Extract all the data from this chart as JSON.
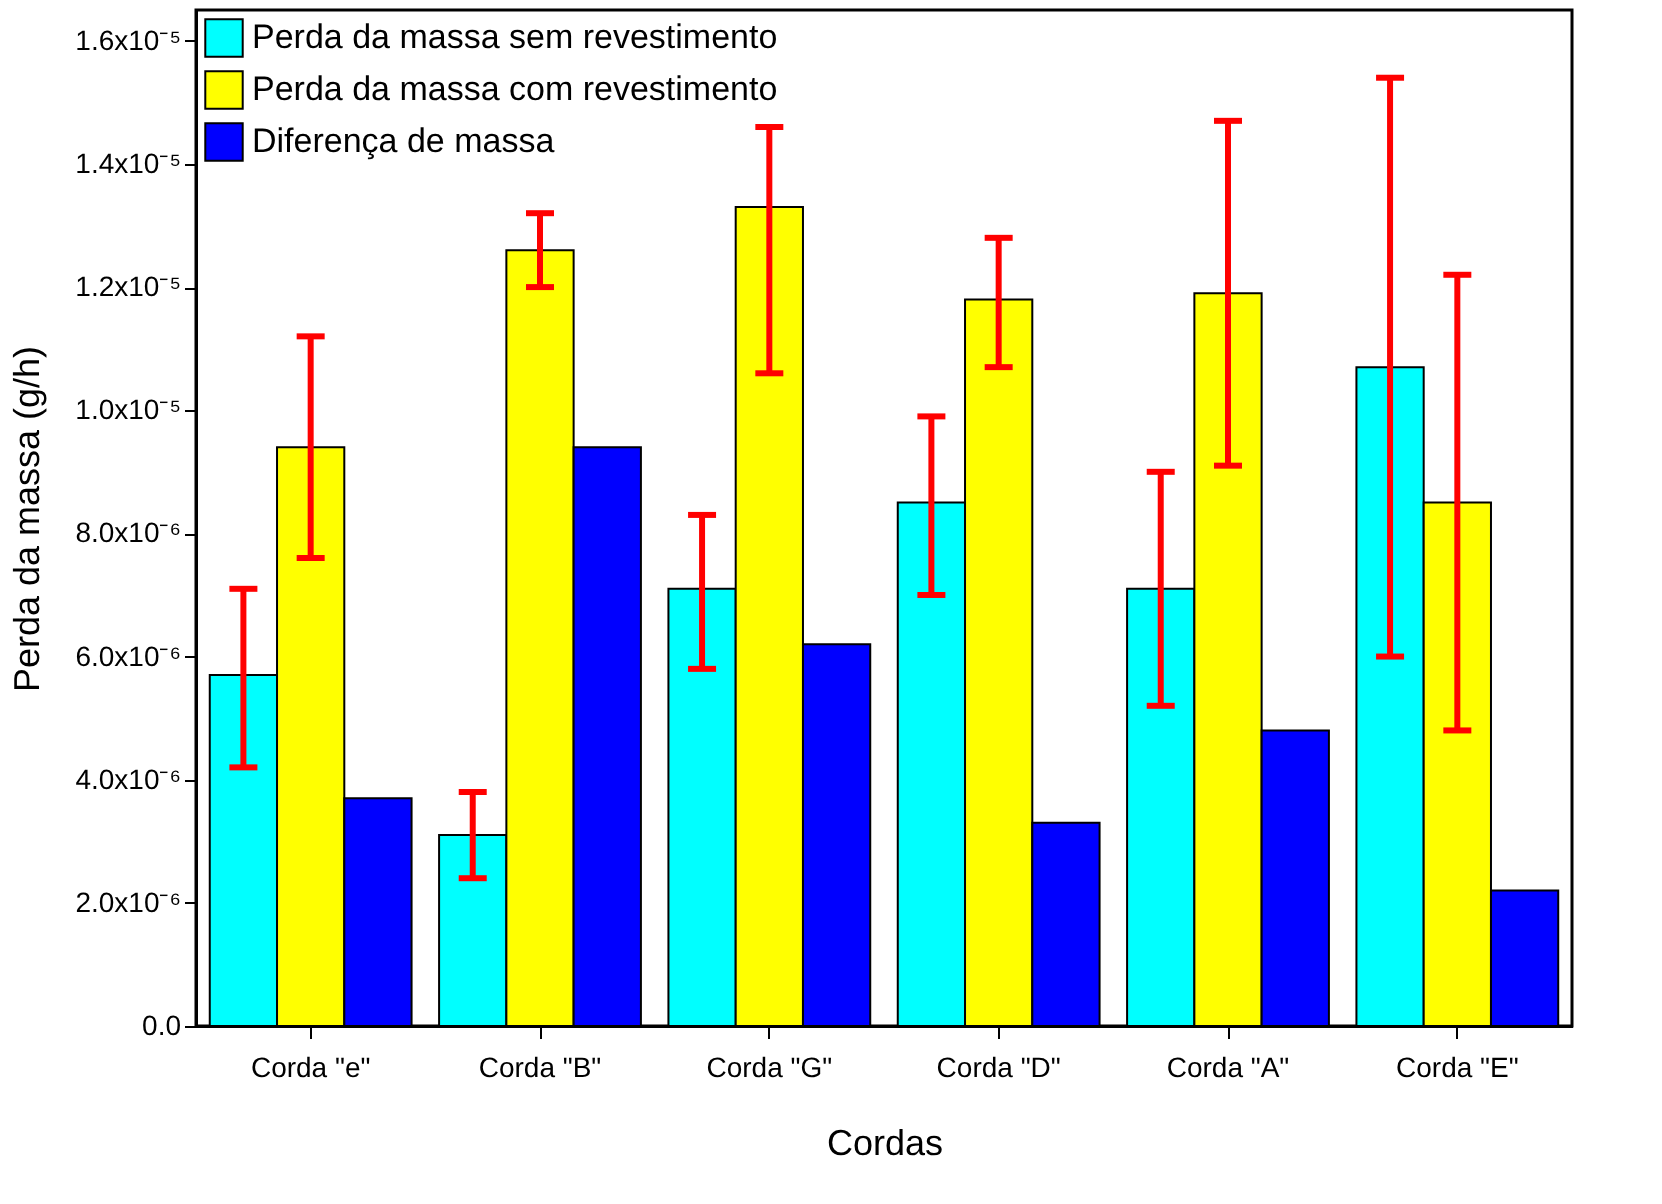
{
  "chart_data": {
    "type": "bar",
    "xlabel": "Cordas",
    "ylabel": "Perda da massa (g/h)",
    "categories": [
      "Corda \"e\"",
      "Corda \"B\"",
      "Corda \"G\"",
      "Corda \"D\"",
      "Corda \"A\"",
      "Corda \"E\""
    ],
    "series": [
      {
        "name": "Perda da massa sem revestimento",
        "color": "#00ffff",
        "values": [
          5.7e-06,
          3.1e-06,
          7.1e-06,
          8.5e-06,
          7.1e-06,
          1.07e-05
        ],
        "errors": [
          [
            4.2e-06,
            7.1e-06
          ],
          [
            2.4e-06,
            3.8e-06
          ],
          [
            5.8e-06,
            8.3e-06
          ],
          [
            7e-06,
            9.9e-06
          ],
          [
            5.2e-06,
            9e-06
          ],
          [
            6e-06,
            1.54e-05
          ]
        ]
      },
      {
        "name": "Perda da massa com revestimento",
        "color": "#ffff00",
        "values": [
          9.4e-06,
          1.26e-05,
          1.33e-05,
          1.18e-05,
          1.19e-05,
          8.5e-06
        ],
        "errors": [
          [
            7.6e-06,
            1.12e-05
          ],
          [
            1.2e-05,
            1.32e-05
          ],
          [
            1.06e-05,
            1.46e-05
          ],
          [
            1.07e-05,
            1.28e-05
          ],
          [
            9.1e-06,
            1.47e-05
          ],
          [
            4.8e-06,
            1.22e-05
          ]
        ]
      },
      {
        "name": "Diferença de massa",
        "color": "#0000ff",
        "values": [
          3.7e-06,
          9.4e-06,
          6.2e-06,
          3.3e-06,
          4.8e-06,
          2.2e-06
        ]
      }
    ],
    "ylim": [
      0,
      1.65e-05
    ],
    "yticks": [
      {
        "value": 0,
        "label": "0.0"
      },
      {
        "value": 2e-06,
        "label": "2.0x10⁻⁶"
      },
      {
        "value": 4e-06,
        "label": "4.0x10⁻⁶"
      },
      {
        "value": 6e-06,
        "label": "6.0x10⁻⁶"
      },
      {
        "value": 8e-06,
        "label": "8.0x10⁻⁶"
      },
      {
        "value": 1e-05,
        "label": "1.0x10⁻⁵"
      },
      {
        "value": 1.2e-05,
        "label": "1.2x10⁻⁵"
      },
      {
        "value": 1.4e-05,
        "label": "1.4x10⁻⁵"
      },
      {
        "value": 1.6e-05,
        "label": "1.6x10⁻⁵"
      }
    ],
    "grid": false,
    "legend": "top left"
  }
}
